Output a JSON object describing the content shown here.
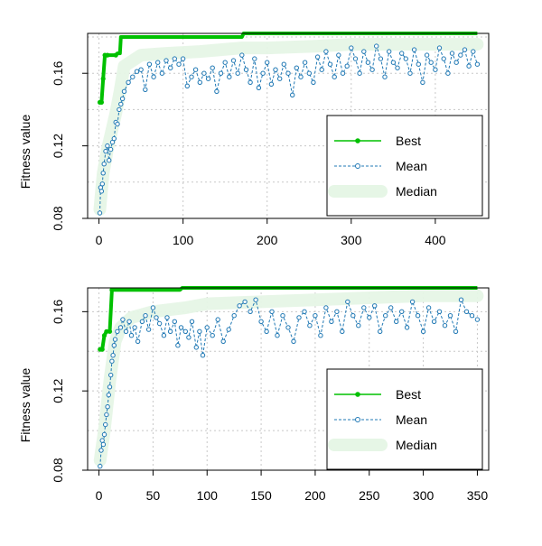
{
  "colors": {
    "best": "#00c000",
    "mean": "#1f78b4",
    "median": "#e6f6e6",
    "grid": "#c8c8c8",
    "axis": "#000000"
  },
  "chart_data": [
    {
      "type": "line",
      "ylabel": "Fitness value",
      "xlim": [
        0,
        450
      ],
      "ylim": [
        0.08,
        0.182
      ],
      "xticks": [
        0,
        100,
        200,
        300,
        400
      ],
      "yticks": [
        0.08,
        0.12,
        0.16
      ],
      "ytick_labels": [
        "0.08",
        "0.12",
        "0.16"
      ],
      "grid": true,
      "legend": {
        "position": "bottom-right",
        "entries": [
          {
            "label": "Best",
            "style": "line-point"
          },
          {
            "label": "Mean",
            "style": "dashed-circle"
          },
          {
            "label": "Median",
            "style": "thick-band"
          }
        ]
      },
      "series": [
        {
          "name": "Best",
          "x": [
            1,
            3,
            5,
            7,
            10,
            20,
            22,
            25,
            26,
            170,
            172,
            450
          ],
          "values": [
            0.144,
            0.144,
            0.157,
            0.17,
            0.17,
            0.17,
            0.171,
            0.171,
            0.18,
            0.18,
            0.182,
            0.182
          ]
        },
        {
          "name": "Mean",
          "x": [
            1,
            2,
            3,
            4,
            5,
            6,
            8,
            10,
            12,
            14,
            16,
            18,
            20,
            22,
            24,
            26,
            28,
            30,
            35,
            40,
            45,
            50,
            55,
            60,
            65,
            70,
            75,
            80,
            85,
            90,
            95,
            100,
            105,
            110,
            115,
            120,
            125,
            130,
            135,
            140,
            145,
            150,
            155,
            160,
            165,
            170,
            175,
            180,
            185,
            190,
            195,
            200,
            205,
            210,
            215,
            220,
            225,
            230,
            235,
            240,
            245,
            250,
            255,
            260,
            265,
            270,
            275,
            280,
            285,
            290,
            295,
            300,
            305,
            310,
            315,
            320,
            325,
            330,
            335,
            340,
            345,
            350,
            355,
            360,
            365,
            370,
            375,
            380,
            385,
            390,
            395,
            400,
            405,
            410,
            415,
            420,
            425,
            430,
            435,
            440,
            445,
            450
          ],
          "values": [
            0.083,
            0.097,
            0.095,
            0.099,
            0.105,
            0.11,
            0.117,
            0.12,
            0.112,
            0.118,
            0.122,
            0.124,
            0.133,
            0.132,
            0.14,
            0.143,
            0.146,
            0.15,
            0.155,
            0.158,
            0.161,
            0.162,
            0.151,
            0.165,
            0.158,
            0.166,
            0.16,
            0.167,
            0.163,
            0.168,
            0.165,
            0.168,
            0.153,
            0.158,
            0.162,
            0.155,
            0.16,
            0.157,
            0.163,
            0.15,
            0.16,
            0.166,
            0.158,
            0.167,
            0.16,
            0.17,
            0.162,
            0.155,
            0.168,
            0.152,
            0.16,
            0.166,
            0.154,
            0.162,
            0.157,
            0.165,
            0.16,
            0.148,
            0.163,
            0.158,
            0.166,
            0.16,
            0.155,
            0.169,
            0.162,
            0.172,
            0.165,
            0.158,
            0.17,
            0.16,
            0.164,
            0.174,
            0.168,
            0.16,
            0.172,
            0.166,
            0.162,
            0.175,
            0.168,
            0.158,
            0.172,
            0.166,
            0.163,
            0.171,
            0.168,
            0.16,
            0.173,
            0.165,
            0.155,
            0.17,
            0.166,
            0.162,
            0.174,
            0.168,
            0.16,
            0.171,
            0.166,
            0.17,
            0.173,
            0.164,
            0.172,
            0.165
          ]
        },
        {
          "name": "Median",
          "x": [
            1,
            5,
            10,
            20,
            25,
            30,
            50,
            80,
            120,
            170,
            200,
            260,
            300,
            350,
            400,
            450
          ],
          "values": [
            0.085,
            0.105,
            0.118,
            0.138,
            0.15,
            0.164,
            0.17,
            0.171,
            0.172,
            0.174,
            0.174,
            0.175,
            0.176,
            0.176,
            0.176,
            0.176
          ]
        }
      ]
    },
    {
      "type": "line",
      "ylabel": "Fitness value",
      "xlim": [
        0,
        350
      ],
      "ylim": [
        0.08,
        0.172
      ],
      "xticks": [
        0,
        50,
        100,
        150,
        200,
        250,
        300,
        350
      ],
      "yticks": [
        0.08,
        0.12,
        0.16
      ],
      "ytick_labels": [
        "0.08",
        "0.12",
        "0.16"
      ],
      "grid": true,
      "legend": {
        "position": "bottom-right",
        "entries": [
          {
            "label": "Best",
            "style": "line-point"
          },
          {
            "label": "Mean",
            "style": "dashed-circle"
          },
          {
            "label": "Median",
            "style": "thick-band"
          }
        ]
      },
      "series": [
        {
          "name": "Best",
          "x": [
            1,
            3,
            5,
            7,
            10,
            12,
            75,
            77,
            350
          ],
          "values": [
            0.141,
            0.141,
            0.148,
            0.15,
            0.15,
            0.171,
            0.171,
            0.172,
            0.172
          ]
        },
        {
          "name": "Mean",
          "x": [
            1,
            2,
            3,
            4,
            5,
            6,
            7,
            8,
            9,
            10,
            11,
            12,
            13,
            14,
            15,
            17,
            20,
            22,
            25,
            28,
            30,
            33,
            36,
            40,
            43,
            46,
            50,
            53,
            56,
            60,
            63,
            66,
            70,
            73,
            76,
            80,
            83,
            86,
            90,
            93,
            96,
            100,
            105,
            110,
            115,
            120,
            125,
            130,
            135,
            140,
            145,
            150,
            155,
            160,
            165,
            170,
            175,
            180,
            185,
            190,
            195,
            200,
            205,
            210,
            215,
            220,
            225,
            230,
            235,
            240,
            245,
            250,
            255,
            260,
            265,
            270,
            275,
            280,
            285,
            290,
            295,
            300,
            305,
            310,
            315,
            320,
            325,
            330,
            335,
            340,
            345,
            350
          ],
          "values": [
            0.082,
            0.09,
            0.095,
            0.093,
            0.098,
            0.103,
            0.108,
            0.112,
            0.118,
            0.122,
            0.128,
            0.135,
            0.138,
            0.143,
            0.146,
            0.15,
            0.152,
            0.156,
            0.15,
            0.155,
            0.148,
            0.152,
            0.145,
            0.155,
            0.158,
            0.151,
            0.162,
            0.157,
            0.154,
            0.148,
            0.157,
            0.15,
            0.155,
            0.143,
            0.152,
            0.15,
            0.147,
            0.155,
            0.142,
            0.15,
            0.138,
            0.152,
            0.148,
            0.156,
            0.145,
            0.151,
            0.158,
            0.163,
            0.165,
            0.16,
            0.166,
            0.155,
            0.15,
            0.16,
            0.148,
            0.158,
            0.152,
            0.145,
            0.157,
            0.16,
            0.153,
            0.158,
            0.148,
            0.162,
            0.155,
            0.16,
            0.15,
            0.165,
            0.158,
            0.153,
            0.162,
            0.157,
            0.163,
            0.15,
            0.158,
            0.162,
            0.155,
            0.16,
            0.152,
            0.165,
            0.158,
            0.15,
            0.162,
            0.155,
            0.16,
            0.153,
            0.158,
            0.15,
            0.166,
            0.16,
            0.158,
            0.156
          ]
        },
        {
          "name": "Median",
          "x": [
            1,
            5,
            10,
            15,
            20,
            30,
            50,
            80,
            100,
            150,
            200,
            250,
            300,
            350
          ],
          "values": [
            0.085,
            0.1,
            0.125,
            0.145,
            0.152,
            0.157,
            0.16,
            0.162,
            0.164,
            0.165,
            0.166,
            0.167,
            0.168,
            0.168
          ]
        }
      ]
    }
  ]
}
